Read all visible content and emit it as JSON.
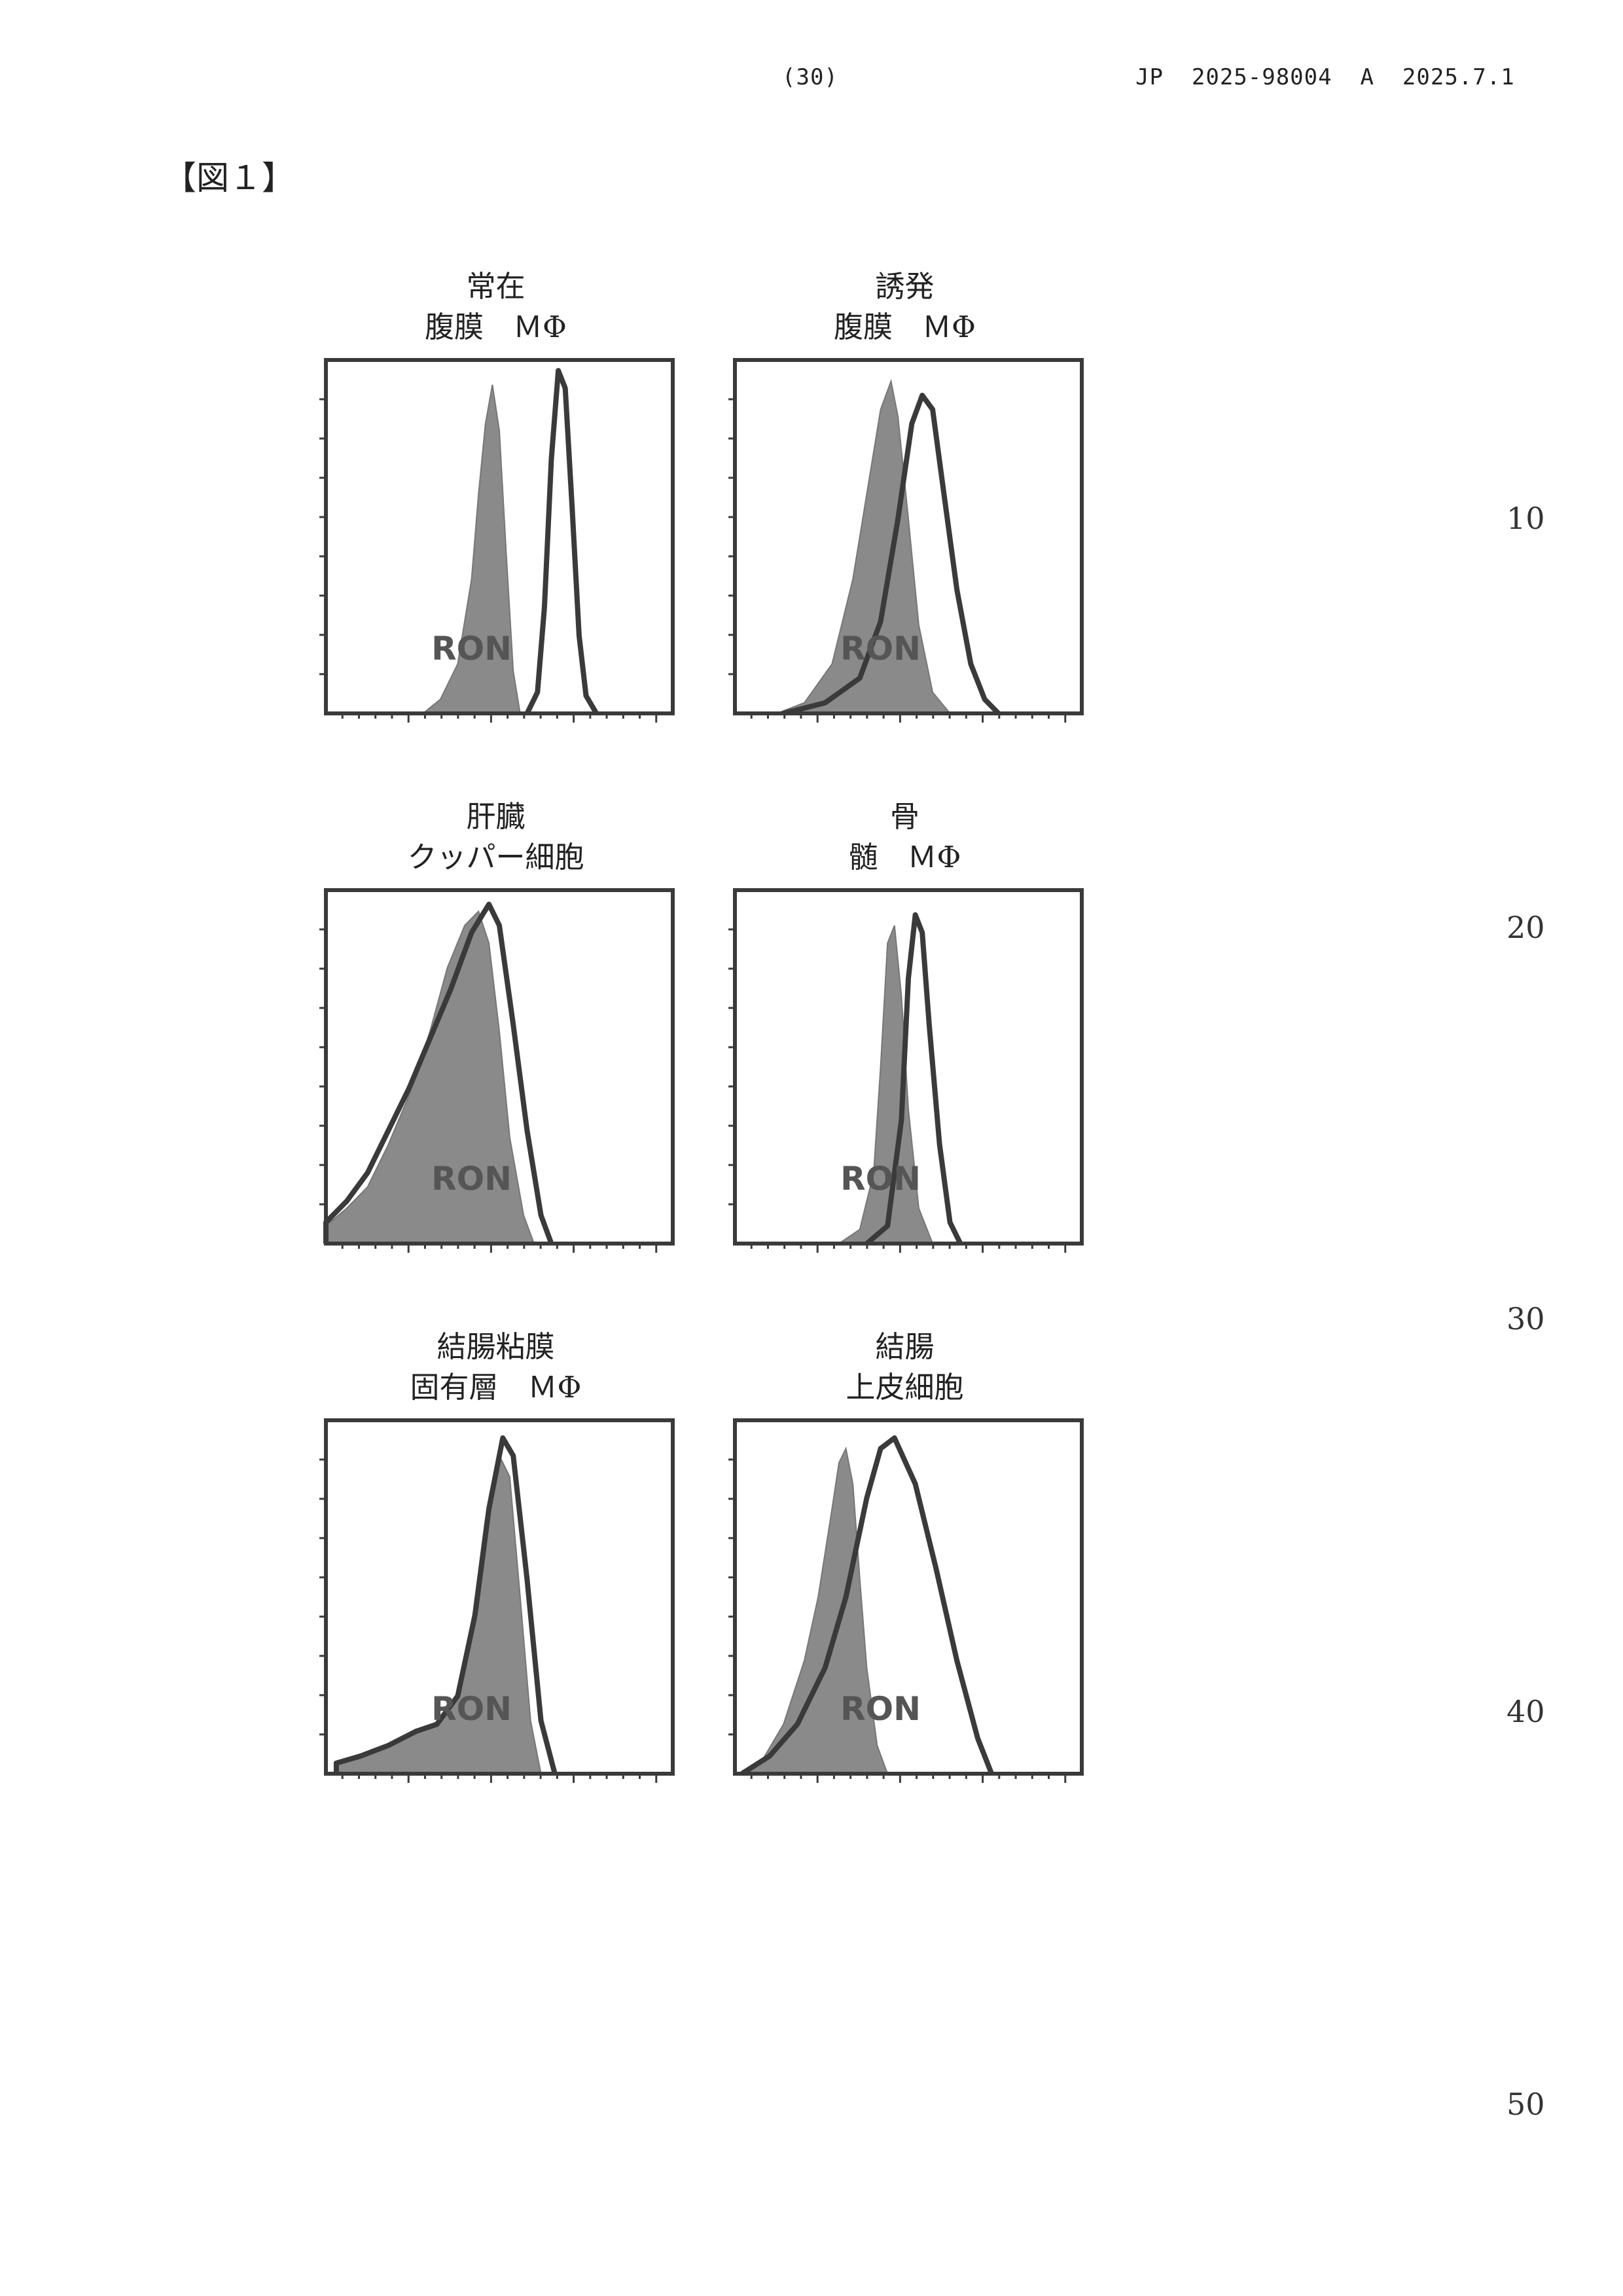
{
  "header": {
    "page_number": "(30)",
    "publication": "JP  2025-98004  A  2025.7.1"
  },
  "figure_label": "【図１】",
  "line_numbers": [
    "10",
    "20",
    "30",
    "40",
    "50"
  ],
  "colors": {
    "frame": "#3a3a3a",
    "isotype_fill": "#8a8a8a",
    "ron_line": "#3a3a3a"
  },
  "chart_data": [
    {
      "type": "area",
      "title_lines": [
        "常在",
        "腹膜　ＭΦ"
      ],
      "xlabel": "RON",
      "xlim": [
        0,
        1
      ],
      "ylim": [
        0,
        1
      ],
      "grid": false,
      "series": [
        {
          "style": "filled",
          "x": [
            0.28,
            0.33,
            0.38,
            0.42,
            0.44,
            0.46,
            0.48,
            0.5,
            0.52,
            0.54,
            0.56
          ],
          "values": [
            0,
            0.04,
            0.14,
            0.38,
            0.62,
            0.82,
            0.93,
            0.8,
            0.45,
            0.12,
            0
          ]
        },
        {
          "style": "outline",
          "x": [
            0.58,
            0.61,
            0.63,
            0.65,
            0.67,
            0.69,
            0.71,
            0.73,
            0.75,
            0.78
          ],
          "values": [
            0,
            0.06,
            0.3,
            0.72,
            0.97,
            0.92,
            0.58,
            0.22,
            0.05,
            0
          ]
        }
      ]
    },
    {
      "type": "area",
      "title_lines": [
        "誘発",
        "腹膜　ＭΦ"
      ],
      "xlabel": "RON",
      "xlim": [
        0,
        1
      ],
      "ylim": [
        0,
        1
      ],
      "grid": false,
      "series": [
        {
          "style": "filled",
          "x": [
            0.12,
            0.2,
            0.28,
            0.34,
            0.38,
            0.42,
            0.45,
            0.47,
            0.5,
            0.53,
            0.57,
            0.62
          ],
          "values": [
            0,
            0.03,
            0.14,
            0.38,
            0.62,
            0.86,
            0.94,
            0.84,
            0.55,
            0.25,
            0.06,
            0
          ]
        },
        {
          "style": "outline",
          "x": [
            0.14,
            0.26,
            0.36,
            0.42,
            0.47,
            0.51,
            0.54,
            0.57,
            0.6,
            0.64,
            0.68,
            0.72,
            0.76
          ],
          "values": [
            0,
            0.03,
            0.1,
            0.26,
            0.55,
            0.82,
            0.9,
            0.86,
            0.64,
            0.35,
            0.14,
            0.04,
            0
          ]
        }
      ]
    },
    {
      "type": "area",
      "title_lines": [
        "肝臓",
        "クッパー細胞"
      ],
      "xlabel": "RON",
      "xlim": [
        0,
        1
      ],
      "ylim": [
        0,
        1
      ],
      "grid": false,
      "series": [
        {
          "style": "filled",
          "x": [
            0,
            0.06,
            0.12,
            0.18,
            0.24,
            0.3,
            0.35,
            0.4,
            0.44,
            0.47,
            0.5,
            0.53,
            0.57,
            0.6
          ],
          "values": [
            0.05,
            0.1,
            0.16,
            0.28,
            0.42,
            0.6,
            0.78,
            0.9,
            0.94,
            0.85,
            0.6,
            0.3,
            0.08,
            0
          ]
        },
        {
          "style": "outline",
          "x": [
            0,
            0.06,
            0.12,
            0.18,
            0.24,
            0.3,
            0.36,
            0.42,
            0.47,
            0.5,
            0.54,
            0.58,
            0.62,
            0.65
          ],
          "values": [
            0.06,
            0.12,
            0.2,
            0.32,
            0.44,
            0.58,
            0.72,
            0.88,
            0.96,
            0.9,
            0.62,
            0.32,
            0.08,
            0
          ]
        }
      ]
    },
    {
      "type": "area",
      "title_lines": [
        "骨",
        "髄　ＭΦ"
      ],
      "xlabel": "RON",
      "xlim": [
        0,
        1
      ],
      "ylim": [
        0,
        1
      ],
      "grid": false,
      "series": [
        {
          "style": "filled",
          "x": [
            0.3,
            0.36,
            0.4,
            0.42,
            0.44,
            0.46,
            0.48,
            0.5,
            0.53,
            0.57
          ],
          "values": [
            0,
            0.04,
            0.2,
            0.5,
            0.85,
            0.9,
            0.7,
            0.38,
            0.1,
            0
          ]
        },
        {
          "style": "outline",
          "x": [
            0.38,
            0.44,
            0.48,
            0.5,
            0.52,
            0.54,
            0.56,
            0.59,
            0.62,
            0.65
          ],
          "values": [
            0,
            0.05,
            0.35,
            0.75,
            0.93,
            0.88,
            0.62,
            0.28,
            0.06,
            0
          ]
        }
      ]
    },
    {
      "type": "area",
      "title_lines": [
        "結腸粘膜",
        "固有層　ＭΦ"
      ],
      "xlabel": "RON",
      "xlim": [
        0,
        1
      ],
      "ylim": [
        0,
        1
      ],
      "grid": false,
      "series": [
        {
          "style": "filled",
          "x": [
            0.03,
            0.1,
            0.18,
            0.26,
            0.32,
            0.38,
            0.42,
            0.46,
            0.5,
            0.53,
            0.56,
            0.59,
            0.62
          ],
          "values": [
            0.03,
            0.05,
            0.08,
            0.12,
            0.14,
            0.22,
            0.42,
            0.72,
            0.9,
            0.84,
            0.5,
            0.15,
            0
          ]
        },
        {
          "style": "outline",
          "x": [
            0.03,
            0.1,
            0.18,
            0.26,
            0.32,
            0.38,
            0.43,
            0.47,
            0.51,
            0.54,
            0.58,
            0.62,
            0.66
          ],
          "values": [
            0.03,
            0.05,
            0.08,
            0.12,
            0.14,
            0.22,
            0.45,
            0.75,
            0.95,
            0.9,
            0.55,
            0.15,
            0
          ]
        }
      ]
    },
    {
      "type": "area",
      "title_lines": [
        "結腸",
        "上皮細胞"
      ],
      "xlabel": "RON",
      "xlim": [
        0,
        1
      ],
      "ylim": [
        0,
        1
      ],
      "grid": false,
      "series": [
        {
          "style": "filled",
          "x": [
            0.02,
            0.08,
            0.14,
            0.2,
            0.24,
            0.28,
            0.3,
            0.32,
            0.34,
            0.36,
            0.38,
            0.41,
            0.44
          ],
          "values": [
            0,
            0.04,
            0.14,
            0.32,
            0.5,
            0.75,
            0.88,
            0.92,
            0.82,
            0.55,
            0.3,
            0.08,
            0
          ]
        },
        {
          "style": "outline",
          "x": [
            0.02,
            0.1,
            0.18,
            0.26,
            0.32,
            0.38,
            0.42,
            0.46,
            0.52,
            0.58,
            0.64,
            0.7,
            0.74
          ],
          "values": [
            0,
            0.05,
            0.14,
            0.3,
            0.5,
            0.78,
            0.92,
            0.95,
            0.82,
            0.58,
            0.32,
            0.1,
            0
          ]
        }
      ]
    }
  ]
}
